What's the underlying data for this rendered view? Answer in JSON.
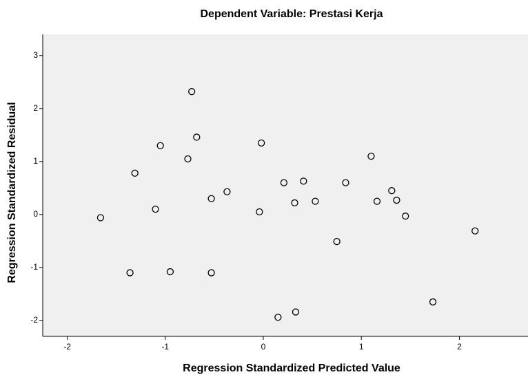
{
  "chart_data": {
    "type": "scatter",
    "title": "Dependent Variable: Prestasi Kerja",
    "x_label": "Regression Standardized Predicted Value",
    "y_label": "Regression Standardized Residual",
    "x": [
      -0.73,
      -1.05,
      -0.68,
      -0.02,
      -0.77,
      -1.31,
      1.1,
      -0.37,
      -0.53,
      0.21,
      0.41,
      0.84,
      1.31,
      -1.1,
      -1.66,
      -0.04,
      0.32,
      0.53,
      1.16,
      1.36,
      1.45,
      2.16,
      0.75,
      -1.36,
      -0.95,
      -0.53,
      0.15,
      0.33,
      1.73
    ],
    "values": [
      2.32,
      1.3,
      1.46,
      1.35,
      1.05,
      0.78,
      1.1,
      0.43,
      0.3,
      0.6,
      0.63,
      0.6,
      0.45,
      0.1,
      -0.06,
      0.05,
      0.22,
      0.25,
      0.25,
      0.27,
      -0.03,
      -0.31,
      -0.51,
      -1.1,
      -1.08,
      -1.1,
      -1.94,
      -1.84,
      -1.65
    ],
    "color": "#000000",
    "xlim": [
      -2.25,
      2.7
    ],
    "xticks": [
      -2,
      -1,
      0,
      1,
      2
    ],
    "ylim": [
      -2.3,
      3.4
    ],
    "yticks": [
      -2,
      -1,
      0,
      1,
      2,
      3
    ],
    "grid": false
  }
}
